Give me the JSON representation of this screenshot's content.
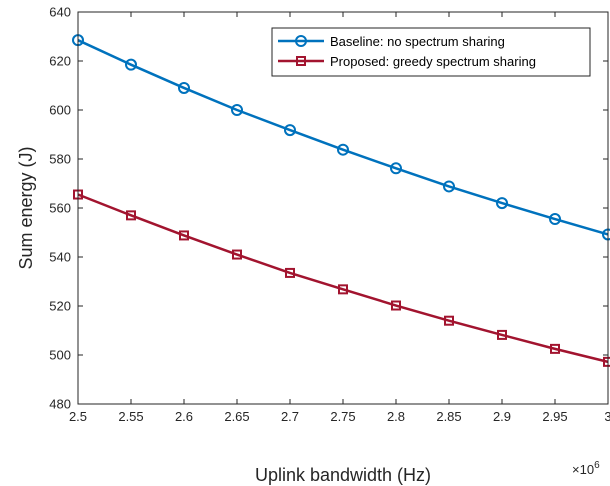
{
  "chart_data": {
    "type": "line",
    "title": "",
    "xlabel": "Uplink bandwidth (Hz)",
    "ylabel": "Sum energy (J)",
    "x_multiplier_label": "×10",
    "x_multiplier_exponent": "6",
    "xlim": [
      2.5,
      3.0
    ],
    "ylim": [
      480,
      640
    ],
    "x_ticks": [
      2.5,
      2.55,
      2.6,
      2.65,
      2.7,
      2.75,
      2.8,
      2.85,
      2.9,
      2.95,
      3.0
    ],
    "x_tick_labels": [
      "2.5",
      "2.55",
      "2.6",
      "2.65",
      "2.7",
      "2.75",
      "2.8",
      "2.85",
      "2.9",
      "2.95",
      "3"
    ],
    "y_ticks": [
      480,
      500,
      520,
      540,
      560,
      580,
      600,
      620,
      640
    ],
    "y_tick_labels": [
      "480",
      "500",
      "520",
      "540",
      "560",
      "580",
      "600",
      "620",
      "640"
    ],
    "grid": false,
    "legend_position": "top-right",
    "x": [
      2.5,
      2.55,
      2.6,
      2.65,
      2.7,
      2.75,
      2.8,
      2.85,
      2.9,
      2.95,
      3.0
    ],
    "series": [
      {
        "name": "Baseline: no spectrum sharing",
        "color": "#0072BD",
        "marker": "circle",
        "values": [
          628.5,
          618.5,
          609.0,
          600.0,
          591.8,
          583.8,
          576.2,
          568.8,
          562.0,
          555.5,
          549.2
        ]
      },
      {
        "name": "Proposed: greedy spectrum sharing",
        "color": "#A2142F",
        "marker": "square",
        "values": [
          565.5,
          557.0,
          548.8,
          541.0,
          533.5,
          526.8,
          520.2,
          514.0,
          508.2,
          502.5,
          497.2
        ]
      }
    ]
  }
}
